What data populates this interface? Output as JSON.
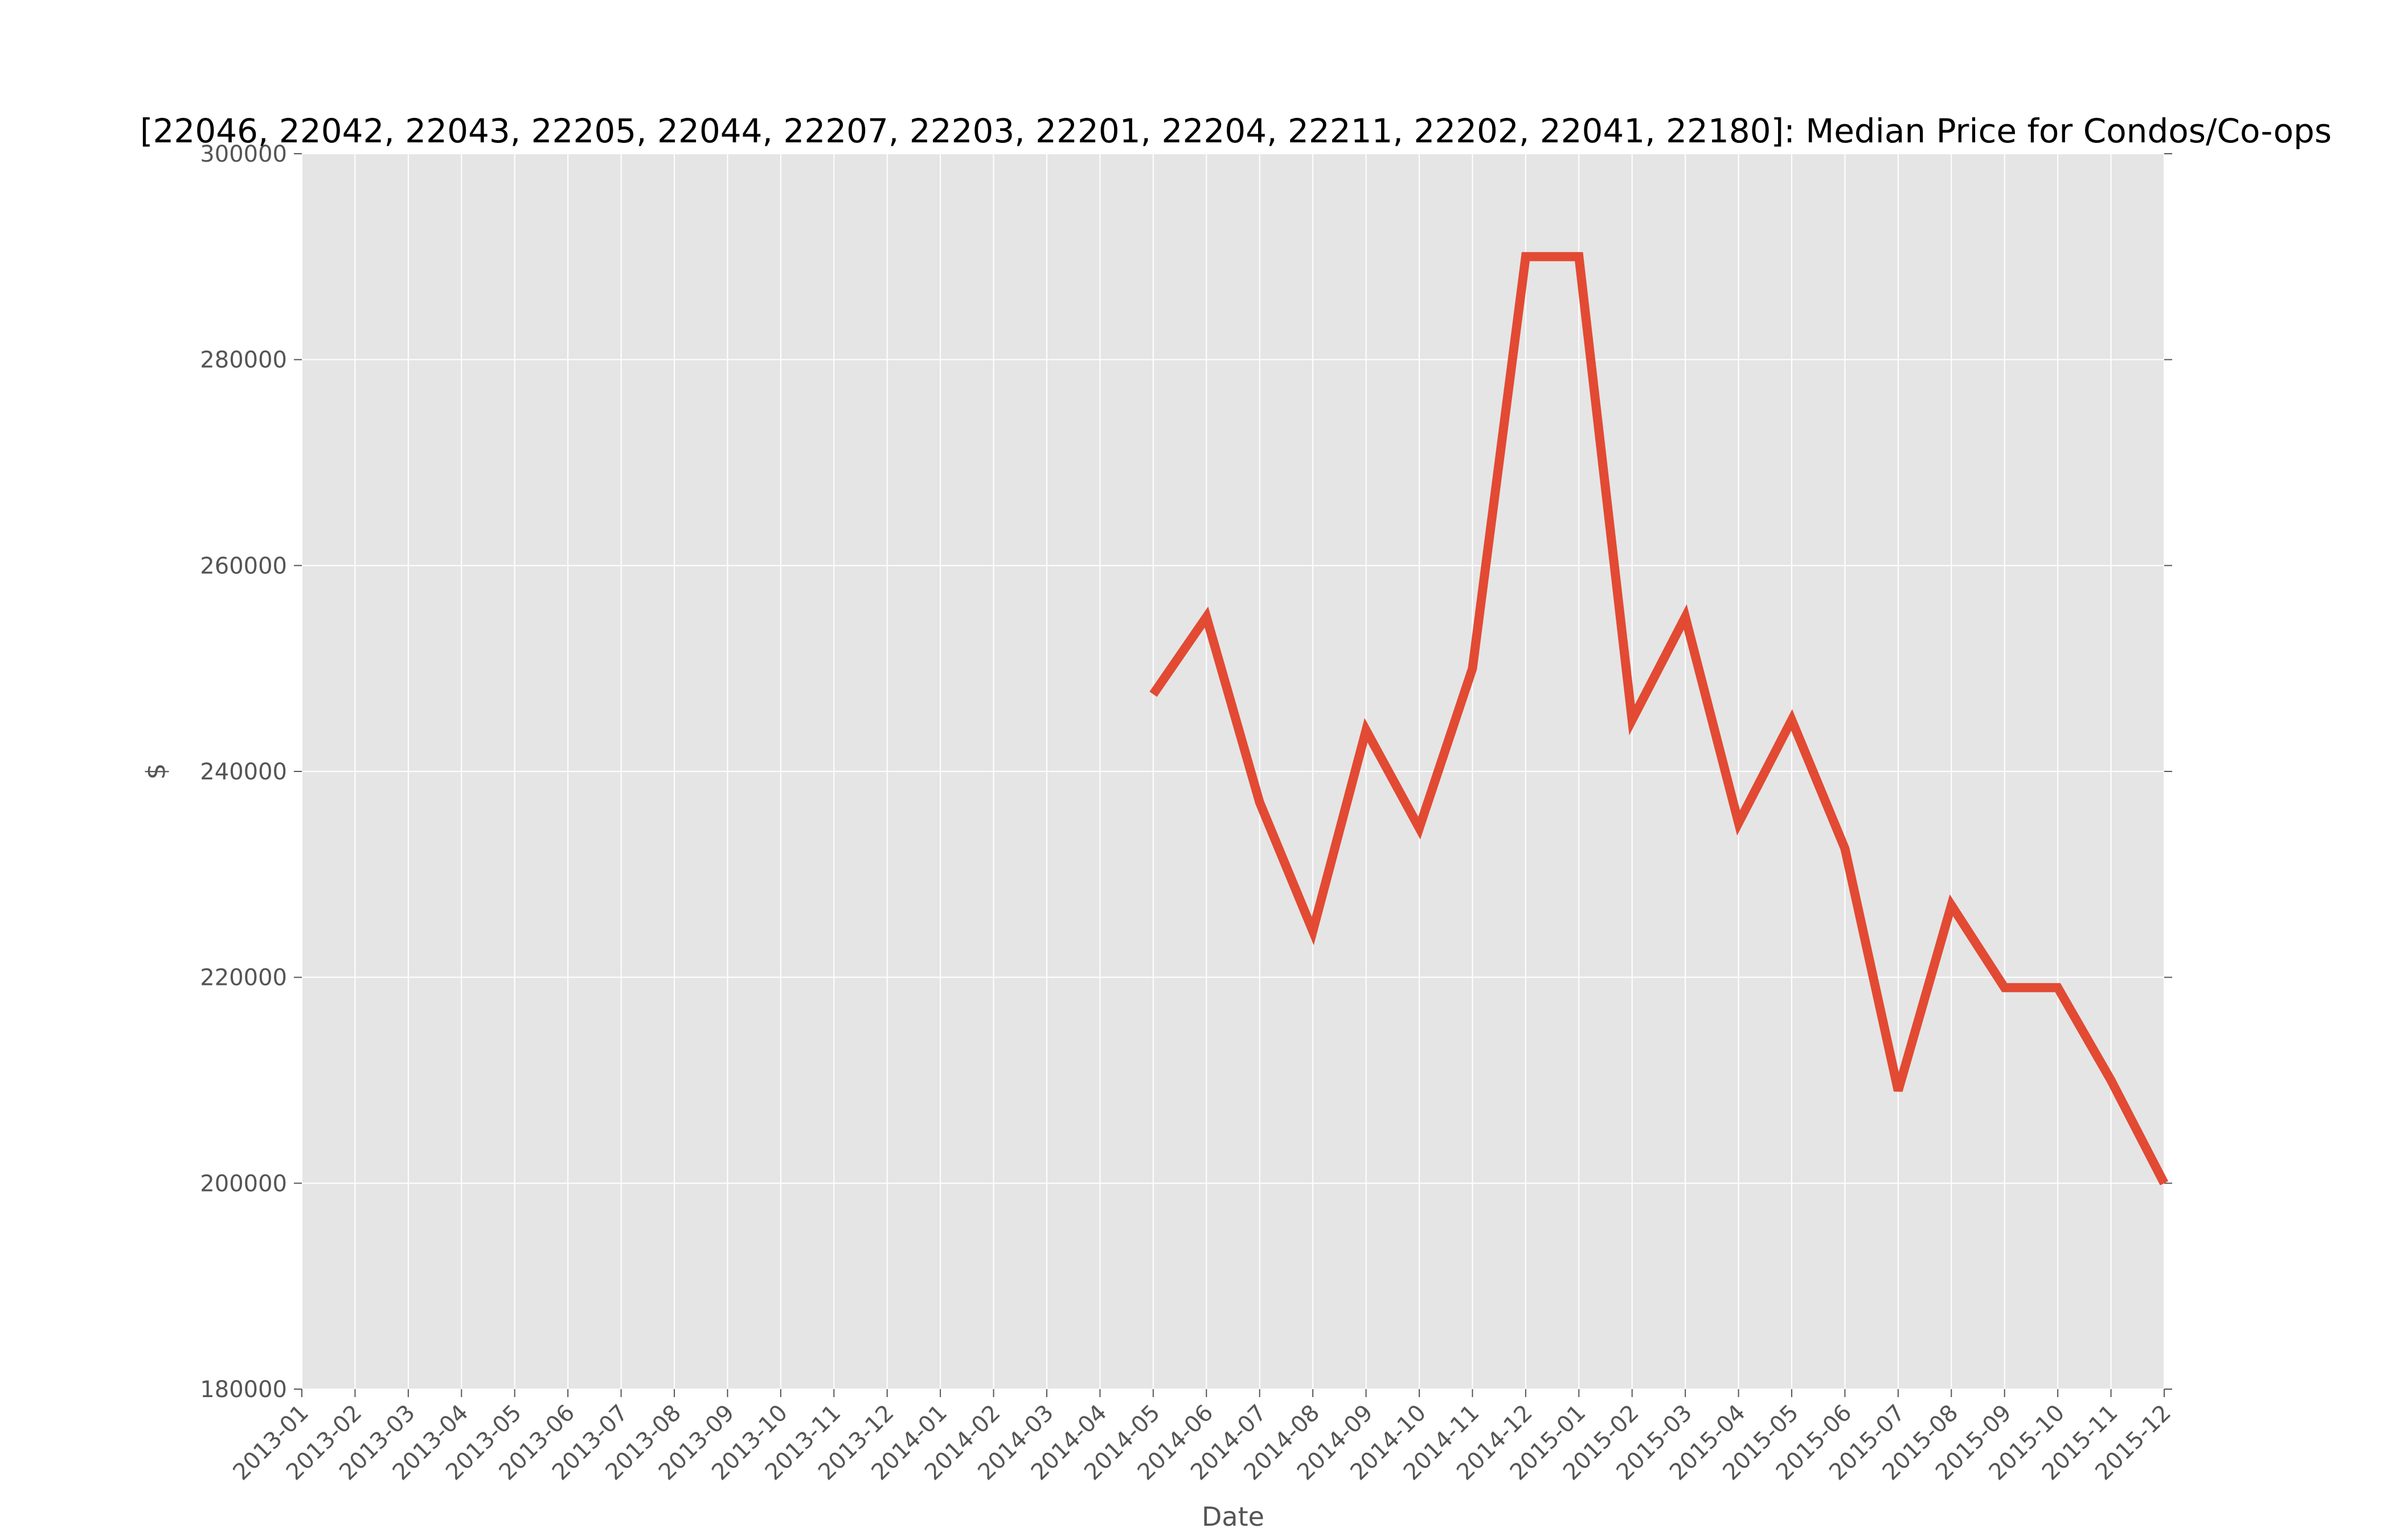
{
  "chart_data": {
    "type": "line",
    "title": "[22046, 22042, 22043, 22205, 22044, 22207, 22203, 22201, 22204, 22211, 22202, 22041, 22180]: Median Price for Condos/Co-ops",
    "xlabel": "Date",
    "ylabel": "$",
    "ylim": [
      180000,
      300000
    ],
    "yticks": [
      180000,
      200000,
      220000,
      240000,
      260000,
      280000,
      300000
    ],
    "ytick_labels": [
      "180000",
      "200000",
      "220000",
      "240000",
      "260000",
      "280000",
      "300000"
    ],
    "x": [
      "2013-01",
      "2013-02",
      "2013-03",
      "2013-04",
      "2013-05",
      "2013-06",
      "2013-07",
      "2013-08",
      "2013-09",
      "2013-10",
      "2013-11",
      "2013-12",
      "2014-01",
      "2014-02",
      "2014-03",
      "2014-04",
      "2014-05",
      "2014-06",
      "2014-07",
      "2014-08",
      "2014-09",
      "2014-10",
      "2014-11",
      "2014-12",
      "2015-01",
      "2015-02",
      "2015-03",
      "2015-04",
      "2015-05",
      "2015-06",
      "2015-07",
      "2015-08",
      "2015-09",
      "2015-10",
      "2015-11",
      "2015-12"
    ],
    "series": [
      {
        "color": "#e24a33",
        "values": [
          null,
          null,
          null,
          null,
          null,
          null,
          null,
          null,
          null,
          null,
          null,
          null,
          null,
          null,
          null,
          null,
          247500,
          255000,
          237000,
          224500,
          244000,
          234500,
          250000,
          290000,
          290000,
          245000,
          255000,
          235000,
          245000,
          232500,
          209000,
          227000,
          219000,
          219000,
          210000,
          200000
        ]
      }
    ],
    "grid": true,
    "background": "#e5e5e5",
    "grid_color": "#ffffff",
    "legend": "none"
  }
}
